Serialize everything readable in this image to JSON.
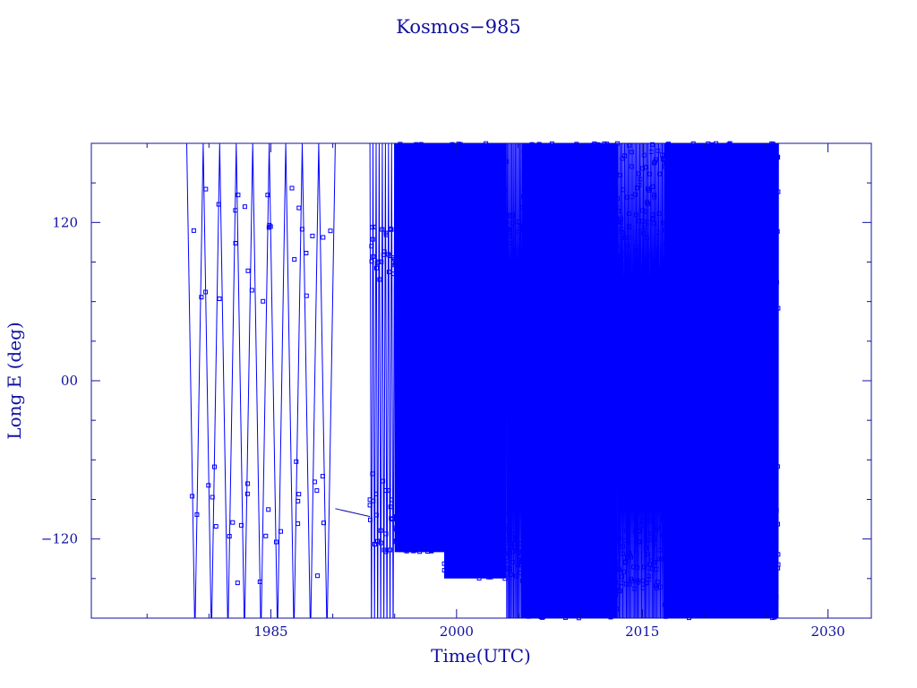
{
  "chart_data": {
    "type": "line",
    "title": "Kosmos−985",
    "xlabel": "Time(UTC)",
    "ylabel": "Long E (deg)",
    "xlim": [
      1970.5,
      2033.5
    ],
    "ylim": [
      -180,
      180
    ],
    "x_ticks": [
      {
        "value": 1985,
        "label": "1985"
      },
      {
        "value": 2000,
        "label": "2000"
      },
      {
        "value": 2015,
        "label": "2015"
      },
      {
        "value": 2030,
        "label": "2030"
      }
    ],
    "y_ticks": [
      {
        "value": 120,
        "label": "120"
      },
      {
        "value": 0,
        "label": "00"
      },
      {
        "value": -120,
        "label": "−120"
      }
    ],
    "grid": false,
    "line_color": "#0000ff",
    "axis_color": "#1010a0",
    "segments": [
      {
        "start": 1978.2,
        "end": 1990.2,
        "bands": [
          {
            "lo": -180,
            "hi": 180
          }
        ],
        "drift_cycles": 9,
        "upper_cluster": [
          60,
          150
        ],
        "lower_cluster": [
          -160,
          -60
        ]
      },
      {
        "start": 1993.0,
        "end": 1995.0,
        "bands": [
          {
            "lo": -180,
            "hi": 180
          }
        ],
        "drift_cycles": 8,
        "upper_cluster": [
          75,
          120
        ],
        "lower_cluster": [
          -130,
          -70
        ]
      },
      {
        "start": 1995.0,
        "end": 1999.0,
        "bands": [
          {
            "lo": -130,
            "hi": 180
          }
        ],
        "drift_cycles": 60,
        "upper_cluster": [
          70,
          180
        ],
        "lower_cluster": [
          -130,
          -100
        ]
      },
      {
        "start": 1999.0,
        "end": 2004.0,
        "bands": [
          {
            "lo": -150,
            "hi": 180
          }
        ],
        "drift_cycles": 70,
        "upper_cluster": [
          60,
          180
        ],
        "lower_cluster": [
          -150,
          -100
        ]
      },
      {
        "start": 2004.0,
        "end": 2005.3,
        "bands": [
          {
            "lo": -180,
            "hi": 180
          }
        ],
        "drift_cycles": 14,
        "upper_cluster": [
          60,
          130
        ],
        "lower_cluster": [
          -150,
          -110
        ]
      },
      {
        "start": 2005.3,
        "end": 2013.0,
        "bands": [
          {
            "lo": -180,
            "hi": 180
          }
        ],
        "drift_cycles": 140,
        "upper_cluster": [
          60,
          180
        ],
        "lower_cluster": [
          -180,
          -60
        ]
      },
      {
        "start": 2013.0,
        "end": 2016.8,
        "bands": [
          {
            "lo": -180,
            "hi": 180
          }
        ],
        "drift_cycles": 40,
        "upper_cluster": [
          40,
          180
        ],
        "lower_cluster": [
          -160,
          -60
        ]
      },
      {
        "start": 2016.8,
        "end": 2026.0,
        "bands": [
          {
            "lo": -180,
            "hi": 180
          }
        ],
        "drift_cycles": 160,
        "upper_cluster": [
          40,
          180
        ],
        "lower_cluster": [
          -180,
          -60
        ]
      }
    ],
    "bridge": {
      "from": [
        1990.2,
        -97
      ],
      "to": [
        1993.0,
        -103
      ]
    }
  }
}
